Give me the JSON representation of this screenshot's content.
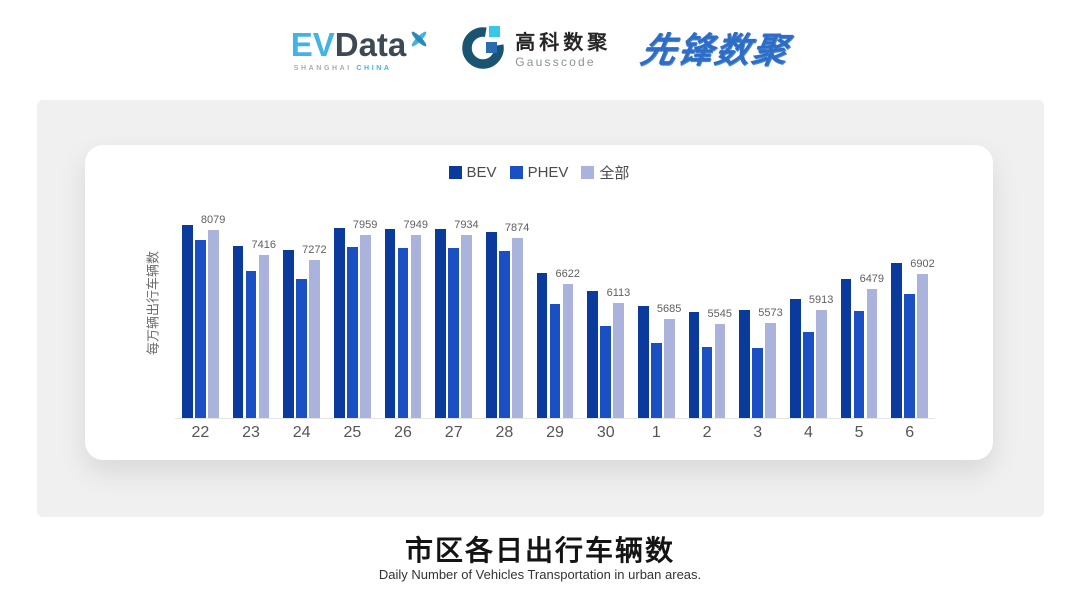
{
  "page": {
    "background": "#ffffff",
    "band_color": "#f0f0f1"
  },
  "header": {
    "evdata_logo": {
      "ev": "EV",
      "data": "Data",
      "sub_left": "SHANGHAI",
      "sub_right": "CHINA",
      "cyan": "#41b4e6",
      "dark": "#3d4a56"
    },
    "gausscode_logo": {
      "cn": "高科数聚",
      "en": "Gausscode",
      "mark_color": "#195470",
      "cyan_square": "#35c8e8",
      "blue_square": "#2a6cb0"
    },
    "xianfeng_logo": {
      "text": "先锋数聚",
      "color": "#2f6cc6"
    }
  },
  "chart_data": {
    "type": "bar",
    "title": "市区各日出行车辆数",
    "subtitle": "Daily Number of Vehicles Transportation in urban areas.",
    "xlabel": "",
    "ylabel": "每万辆出行车辆数",
    "categories": [
      "22",
      "23",
      "24",
      "25",
      "26",
      "27",
      "28",
      "29",
      "30",
      "1",
      "2",
      "3",
      "4",
      "5",
      "6"
    ],
    "series": [
      {
        "id": "bev",
        "name": "BEV",
        "color": "#0a3a9c",
        "values": [
          8220,
          7650,
          7540,
          8140,
          8110,
          8110,
          8030,
          6920,
          6430,
          6030,
          5870,
          5920,
          6220,
          6760,
          7190
        ],
        "data_labels": false
      },
      {
        "id": "phev",
        "name": "PHEV",
        "color": "#1b50c4",
        "values": [
          7810,
          6970,
          6760,
          7620,
          7600,
          7600,
          7510,
          6080,
          5490,
          5030,
          4920,
          4890,
          5320,
          5890,
          6350
        ],
        "data_labels": false
      },
      {
        "id": "all",
        "name": "全部",
        "color": "#aab3dc",
        "values": [
          8079,
          7416,
          7272,
          7959,
          7949,
          7934,
          7874,
          6622,
          6113,
          5685,
          5545,
          5573,
          5913,
          6479,
          6902
        ],
        "data_labels": true
      }
    ],
    "ylim": [
      3000,
      9000
    ],
    "grid": false,
    "legend_position": "top",
    "legend_labels": [
      "BEV",
      "PHEV",
      "全部"
    ]
  },
  "footer": {
    "title": "市区各日出行车辆数",
    "subtitle": "Daily Number of Vehicles Transportation in urban areas."
  }
}
